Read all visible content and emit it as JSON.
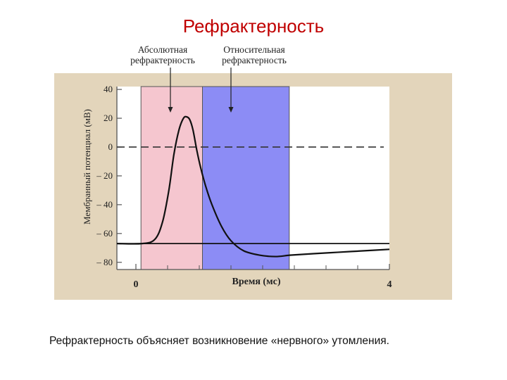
{
  "slide": {
    "title": "Рефрактерность",
    "caption": "Рефрактерность объясняет возникновение «нервного» утомления."
  },
  "chart_data": {
    "type": "line",
    "ylabel": "Мембранный потенциал (мВ)",
    "xlabel": "Время (мс)",
    "xlim": [
      -0.3,
      4
    ],
    "ylim": [
      -85,
      42
    ],
    "x_tick_labels": [
      {
        "x": 0,
        "label": "0"
      },
      {
        "x": 4,
        "label": "4"
      }
    ],
    "y_ticks": [
      40,
      20,
      0,
      -20,
      -40,
      -60,
      -80
    ],
    "y_tick_labels": [
      "40",
      "20",
      "0",
      "– 20",
      "– 40",
      "– 60",
      "– 80"
    ],
    "regions": [
      {
        "name": "Абсолютная рефрактерность",
        "lines": [
          "Абсолютная",
          "рефрактерность"
        ],
        "x": [
          0.08,
          1.05
        ],
        "color": "#f5c6cf"
      },
      {
        "name": "Относительная рефрактерность",
        "lines": [
          "Относительная",
          "рефрактерность"
        ],
        "x": [
          1.05,
          2.42
        ],
        "color": "#8c8cf5"
      }
    ],
    "threshold_line": {
      "y": 0,
      "style": "dashed"
    },
    "resting_line": {
      "y": -67
    },
    "series": [
      {
        "x": [
          -0.3,
          0.1,
          0.3,
          0.42,
          0.52,
          0.6,
          0.68,
          0.75,
          0.8,
          0.85,
          0.9,
          0.96,
          1.02,
          1.1,
          1.2,
          1.35,
          1.5,
          1.7,
          1.95,
          2.2,
          2.45,
          2.8,
          3.2,
          3.6,
          4.0
        ],
        "y": [
          -67,
          -67,
          -64,
          -52,
          -30,
          -5,
          12,
          20,
          21,
          19,
          12,
          -2,
          -14,
          -27,
          -40,
          -55,
          -65,
          -72,
          -75,
          -76,
          -75,
          -74,
          -73,
          -72,
          -71
        ]
      }
    ],
    "colors": {
      "background": "#e3d5bb",
      "plot_area": "#ffffff",
      "line": "#111111",
      "title": "#c00000"
    }
  }
}
